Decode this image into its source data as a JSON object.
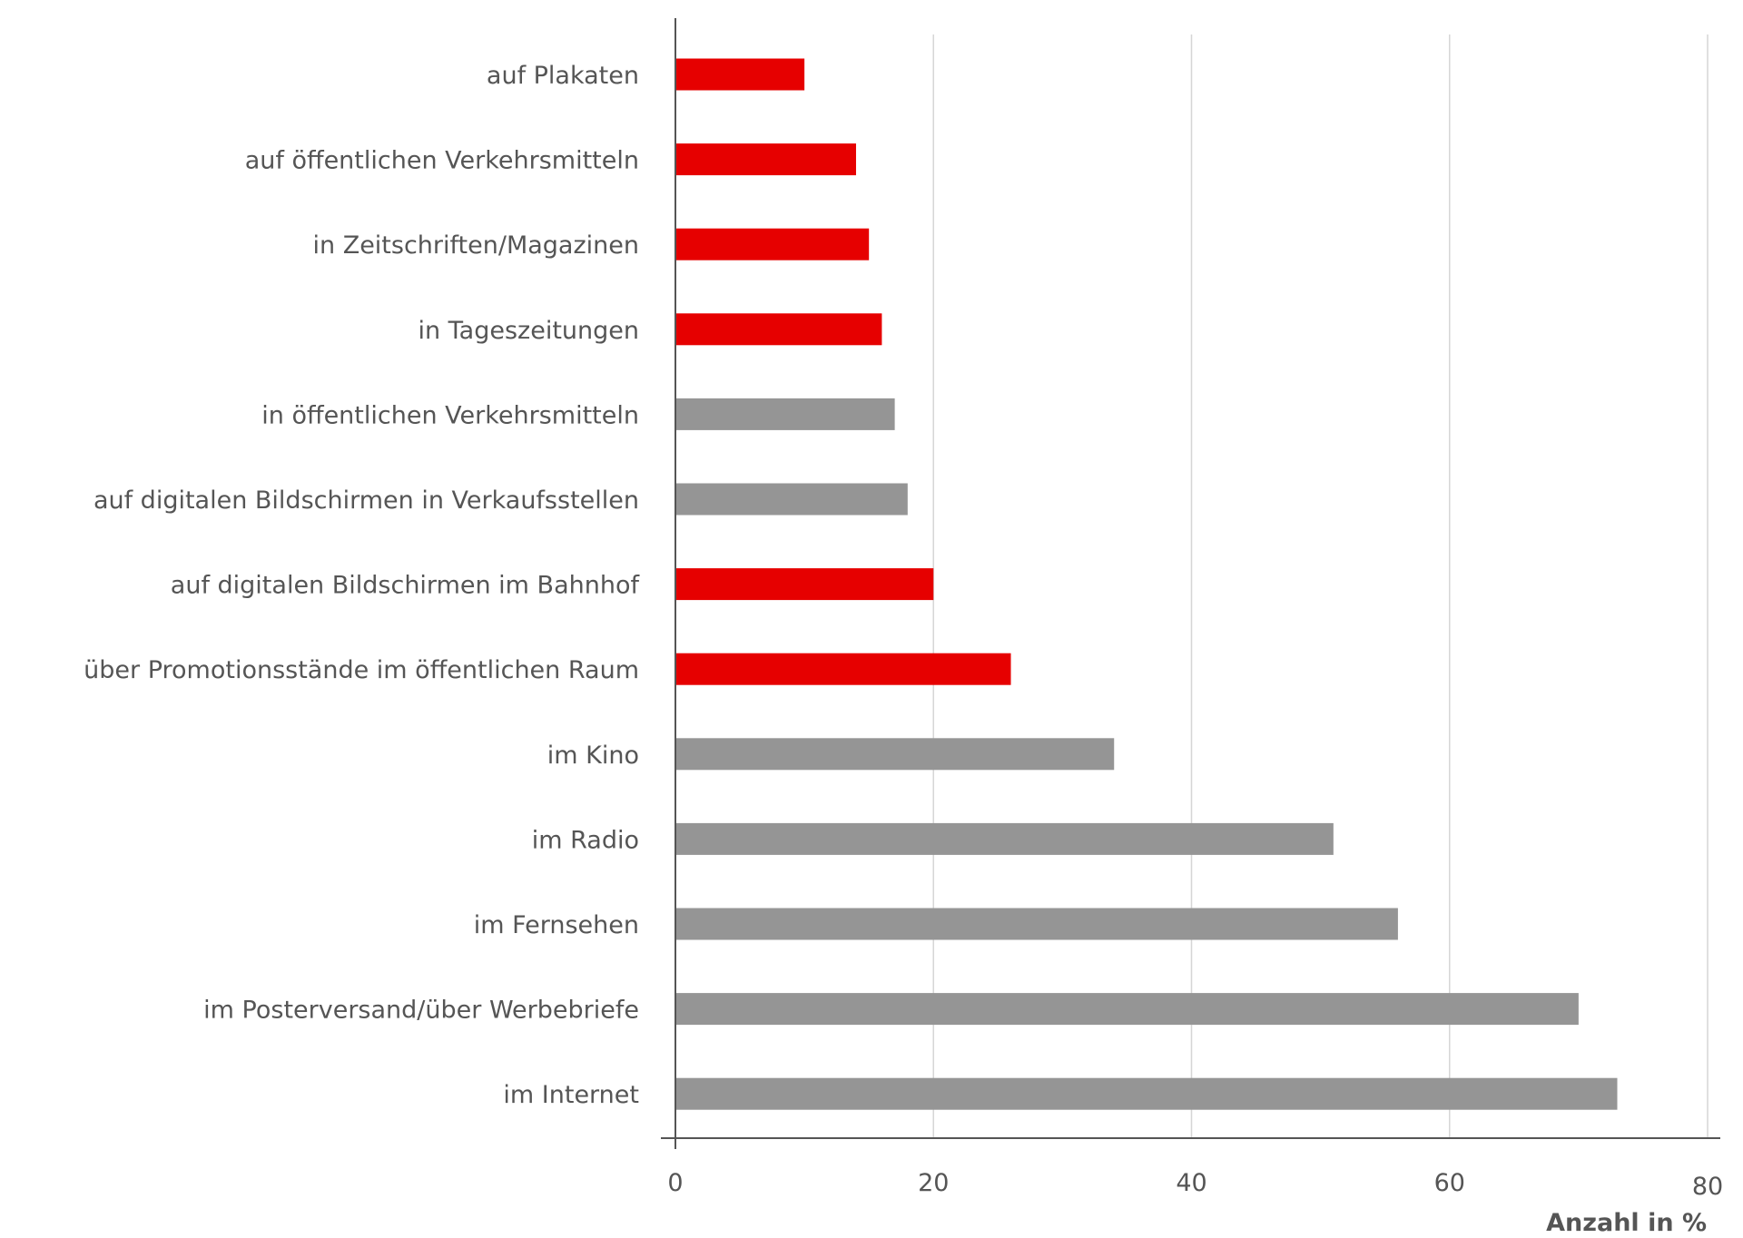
{
  "chart_data": {
    "type": "bar",
    "orientation": "horizontal",
    "title": "",
    "xlabel": "Anzahl in %",
    "ylabel": "",
    "xlim": [
      0,
      80
    ],
    "xticks": [
      "0",
      "20",
      "40",
      "60",
      "80"
    ],
    "grid": "vertical",
    "legend": "none",
    "categories": [
      "auf Plakaten",
      "auf öffentlichen Verkehrsmitteln",
      "in Zeitschriften/Magazinen",
      "in Tageszeitungen",
      "in öffentlichen Verkehrsmitteln",
      "auf digitalen Bildschirmen in Verkaufsstellen",
      "auf digitalen Bildschirmen im Bahnhof",
      "über Promotionsstände im öffentlichen Raum",
      "im Kino",
      "im Radio",
      "im Fernsehen",
      "im Posterversand/über Werbebriefe",
      "im Internet"
    ],
    "values": [
      10,
      14,
      15,
      16,
      17,
      18,
      20,
      26,
      34,
      51,
      56,
      70,
      73
    ],
    "highlighted": [
      true,
      true,
      true,
      true,
      false,
      false,
      true,
      true,
      false,
      false,
      false,
      false,
      false
    ],
    "colors": {
      "highlight": "#e60000",
      "default": "#959595",
      "grid": "#d6d6d6",
      "axis": "#555555",
      "text": "#555555"
    }
  }
}
